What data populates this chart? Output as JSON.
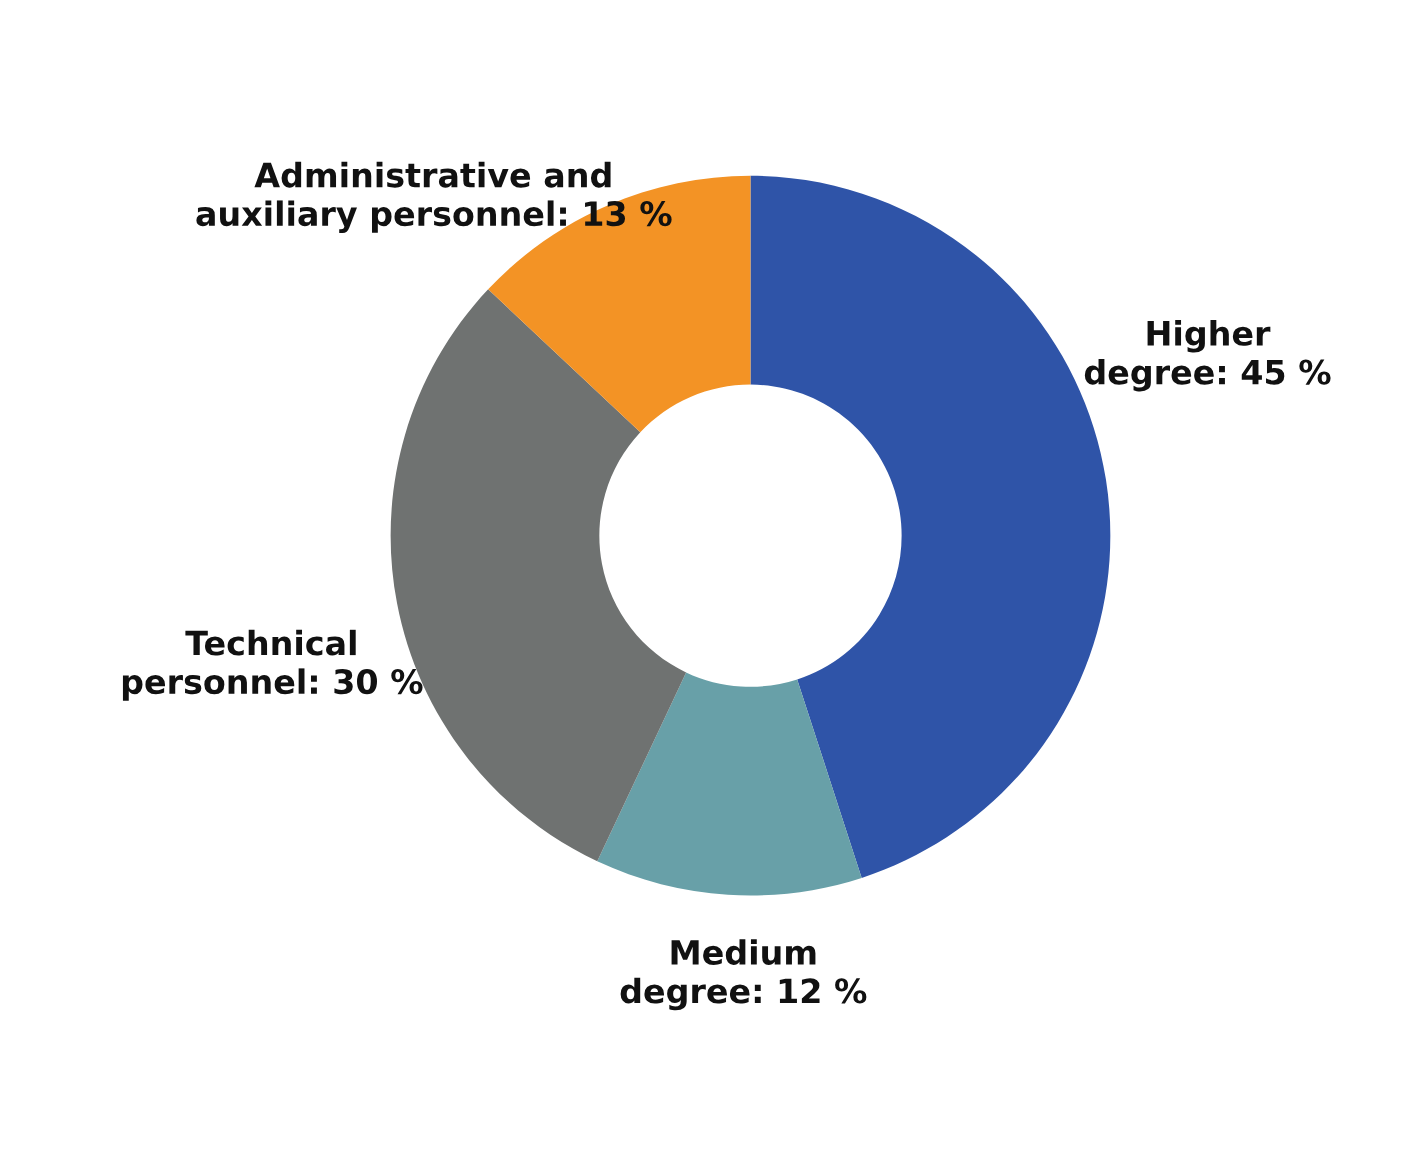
{
  "chart_data": {
    "type": "donut",
    "categories": [
      "Higher degree",
      "Medium degree",
      "Technical personnel",
      "Administrative and auxiliary personnel"
    ],
    "values": [
      45,
      12,
      30,
      13
    ],
    "value_labels": [
      "45 %",
      "12 %",
      "30 %",
      "13 %"
    ],
    "colors": [
      "#2f54a8",
      "#68a0a8",
      "#6f7271",
      "#f39325"
    ],
    "legend": false
  }
}
